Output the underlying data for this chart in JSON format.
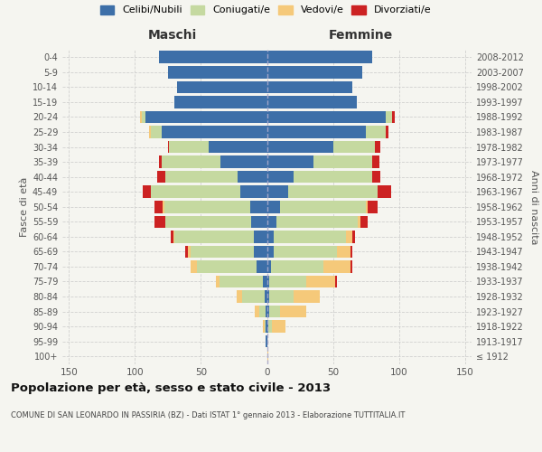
{
  "age_groups": [
    "100+",
    "95-99",
    "90-94",
    "85-89",
    "80-84",
    "75-79",
    "70-74",
    "65-69",
    "60-64",
    "55-59",
    "50-54",
    "45-49",
    "40-44",
    "35-39",
    "30-34",
    "25-29",
    "20-24",
    "15-19",
    "10-14",
    "5-9",
    "0-4"
  ],
  "birth_years": [
    "≤ 1912",
    "1913-1917",
    "1918-1922",
    "1923-1927",
    "1928-1932",
    "1933-1937",
    "1938-1942",
    "1943-1947",
    "1948-1952",
    "1953-1957",
    "1958-1962",
    "1963-1967",
    "1968-1972",
    "1973-1977",
    "1978-1982",
    "1983-1987",
    "1988-1992",
    "1993-1997",
    "1998-2002",
    "2003-2007",
    "2008-2012"
  ],
  "maschi": {
    "celibi": [
      0,
      1,
      1,
      1,
      2,
      3,
      8,
      10,
      10,
      12,
      13,
      20,
      22,
      35,
      44,
      80,
      92,
      70,
      68,
      75,
      82
    ],
    "coniugati": [
      0,
      0,
      1,
      5,
      17,
      33,
      45,
      48,
      60,
      65,
      65,
      68,
      55,
      45,
      30,
      8,
      3,
      0,
      0,
      0,
      0
    ],
    "vedovi": [
      0,
      0,
      1,
      3,
      4,
      3,
      5,
      2,
      1,
      0,
      1,
      0,
      0,
      0,
      0,
      1,
      1,
      0,
      0,
      0,
      0
    ],
    "divorziati": [
      0,
      0,
      0,
      0,
      0,
      0,
      0,
      2,
      2,
      8,
      6,
      6,
      6,
      2,
      1,
      0,
      0,
      0,
      0,
      0,
      0
    ]
  },
  "femmine": {
    "nubili": [
      0,
      0,
      1,
      2,
      2,
      2,
      3,
      5,
      5,
      7,
      10,
      16,
      20,
      35,
      50,
      75,
      90,
      68,
      65,
      72,
      80
    ],
    "coniugate": [
      0,
      0,
      3,
      8,
      18,
      28,
      40,
      48,
      55,
      62,
      65,
      68,
      60,
      45,
      32,
      15,
      5,
      0,
      0,
      0,
      0
    ],
    "vedove": [
      1,
      0,
      10,
      20,
      20,
      22,
      20,
      10,
      5,
      2,
      1,
      0,
      0,
      0,
      0,
      0,
      0,
      0,
      0,
      0,
      0
    ],
    "divorziate": [
      0,
      0,
      0,
      0,
      0,
      1,
      2,
      2,
      2,
      5,
      8,
      10,
      6,
      5,
      4,
      2,
      2,
      0,
      0,
      0,
      0
    ]
  },
  "colors": {
    "celibi": "#3d6fa8",
    "coniugati": "#c5d9a0",
    "vedovi": "#f5c97a",
    "divorziati": "#cc2222"
  },
  "title": "Popolazione per età, sesso e stato civile - 2013",
  "subtitle": "COMUNE DI SAN LEONARDO IN PASSIRIA (BZ) - Dati ISTAT 1° gennaio 2013 - Elaborazione TUTTITALIA.IT",
  "xlabel_left": "Maschi",
  "xlabel_right": "Femmine",
  "ylabel_left": "Fasce di età",
  "ylabel_right": "Anni di nascita",
  "xlim": 155,
  "bg_color": "#f5f5f0",
  "plot_bg": "#f5f5f0",
  "grid_color": "#cccccc",
  "legend_labels": [
    "Celibi/Nubili",
    "Coniugati/e",
    "Vedovi/e",
    "Divorziati/e"
  ]
}
